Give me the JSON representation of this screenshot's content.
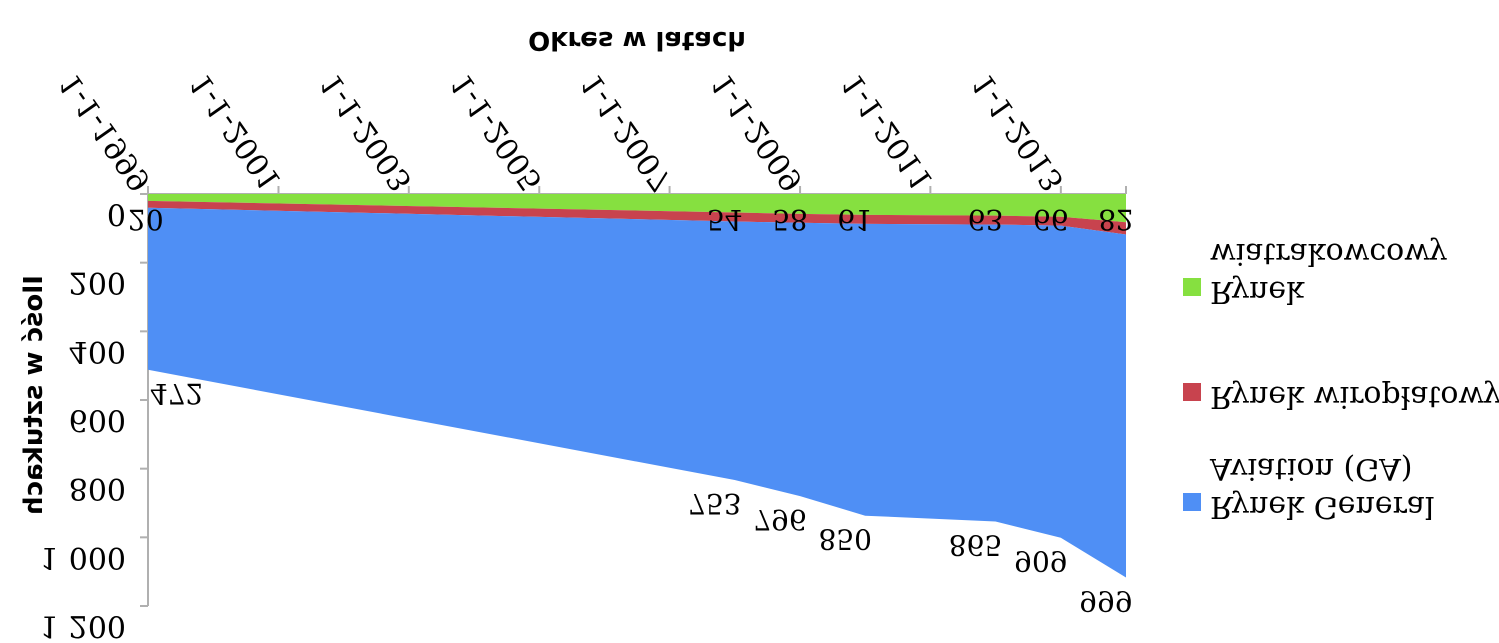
{
  "chart_data": {
    "type": "area",
    "stacked": true,
    "xlabel": "Okres w latach",
    "ylabel": "Ilość w sztukach",
    "ylim": [
      0,
      1200
    ],
    "y_tick_labels": [
      "0",
      "200",
      "400",
      "600",
      "800",
      "1 000",
      "1 200"
    ],
    "y_ticks": [
      0,
      200,
      400,
      600,
      800,
      1000,
      1200
    ],
    "x_tick_labels": [
      "1-1-1999",
      "1-1-2001",
      "1-1-2003",
      "1-1-2005",
      "1-1-2007",
      "1-1-2009",
      "1-1-2011",
      "1-1-2013"
    ],
    "x": [
      "1999-01-01",
      "2008-01-01",
      "2009-01-01",
      "2010-01-01",
      "2012-01-01",
      "2013-01-01",
      "2014-01-01"
    ],
    "series": [
      {
        "name": "Rynek General Aviation (GA)",
        "color": "#4F8FF5",
        "values": [
          472,
          753,
          796,
          850,
          865,
          909,
          999
        ]
      },
      {
        "name": "Rynek wiropłatowy",
        "color": "#C8434E",
        "values": [
          20,
          26,
          26,
          26,
          26,
          26,
          36
        ]
      },
      {
        "name": "Rynek wiatrakowcowy",
        "color": "#86E040",
        "values": [
          20,
          54,
          58,
          61,
          63,
          66,
          82
        ]
      }
    ],
    "data_labels": {
      "Rynek General Aviation (GA)": [
        "472",
        "753",
        "796",
        "850",
        "865",
        "909",
        "999"
      ],
      "Rynek wiatrakowcowy": [
        "20",
        "54",
        "58",
        "61",
        "63",
        "66",
        "82"
      ]
    },
    "legend_position": "right",
    "orientation_note": "y axis inverted (0 at top)"
  },
  "legend": {
    "entries": [
      {
        "label_lines": [
          "Rynek",
          "wiatrakowcowy"
        ],
        "color": "#86E040"
      },
      {
        "label_lines": [
          "Rynek wiropłatowy"
        ],
        "color": "#C8434E"
      },
      {
        "label_lines": [
          "Rynek General",
          "Aviation (GA)"
        ],
        "color": "#4F8FF5"
      }
    ]
  },
  "colors": {
    "axis": "#b0b0b0",
    "text": "#000000"
  }
}
